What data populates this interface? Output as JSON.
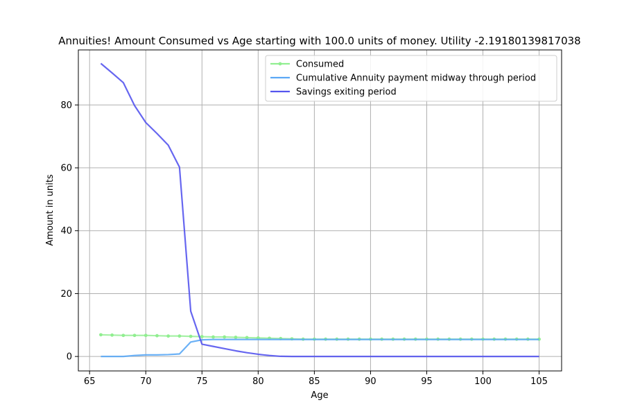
{
  "chart_data": {
    "type": "line",
    "title": "Annuities! Amount Consumed vs Age starting with 100.0 units of money. Utility -2.19180139817038",
    "xlabel": "Age",
    "ylabel": "Amount in units",
    "xlim": [
      64,
      107
    ],
    "ylim": [
      -4.6,
      97.5
    ],
    "xticks": [
      65,
      70,
      75,
      80,
      85,
      90,
      95,
      100,
      105
    ],
    "yticks": [
      0,
      20,
      40,
      60,
      80
    ],
    "grid": true,
    "legend_position": "top-right",
    "x": [
      66,
      67,
      68,
      69,
      70,
      71,
      72,
      73,
      74,
      75,
      76,
      77,
      78,
      79,
      80,
      81,
      82,
      83,
      84,
      85,
      86,
      87,
      88,
      89,
      90,
      91,
      92,
      93,
      94,
      95,
      96,
      97,
      98,
      99,
      100,
      101,
      102,
      103,
      104,
      105
    ],
    "series": [
      {
        "name": "Consumed",
        "color": "#90ee90",
        "marker": true,
        "values": [
          6.9,
          6.8,
          6.7,
          6.7,
          6.7,
          6.6,
          6.5,
          6.5,
          6.4,
          6.3,
          6.2,
          6.2,
          6.1,
          6.0,
          5.9,
          5.8,
          5.7,
          5.6,
          5.5,
          5.5,
          5.5,
          5.5,
          5.5,
          5.5,
          5.5,
          5.5,
          5.5,
          5.5,
          5.5,
          5.5,
          5.5,
          5.5,
          5.5,
          5.5,
          5.5,
          5.5,
          5.5,
          5.5,
          5.5,
          5.5
        ]
      },
      {
        "name": "Cumulative Annuity payment midway through period",
        "color": "#5ba8f5",
        "marker": false,
        "values": [
          0,
          0,
          0,
          0.3,
          0.5,
          0.5,
          0.6,
          0.8,
          4.6,
          5.3,
          5.4,
          5.4,
          5.4,
          5.4,
          5.4,
          5.4,
          5.4,
          5.4,
          5.4,
          5.4,
          5.4,
          5.4,
          5.4,
          5.4,
          5.4,
          5.4,
          5.4,
          5.4,
          5.4,
          5.4,
          5.4,
          5.4,
          5.4,
          5.4,
          5.4,
          5.4,
          5.4,
          5.4,
          5.4,
          5.4
        ]
      },
      {
        "name": "Savings exiting period",
        "color": "#5555ee",
        "marker": false,
        "values": [
          93.2,
          90.2,
          87.1,
          79.8,
          74.4,
          70.9,
          67.2,
          60.2,
          14.4,
          3.9,
          3.2,
          2.5,
          1.8,
          1.2,
          0.7,
          0.3,
          0.05,
          0,
          0,
          0,
          0,
          0,
          0,
          0,
          0,
          0,
          0,
          0,
          0,
          0,
          0,
          0,
          0,
          0,
          0,
          0,
          0,
          0,
          0,
          0
        ]
      }
    ]
  }
}
